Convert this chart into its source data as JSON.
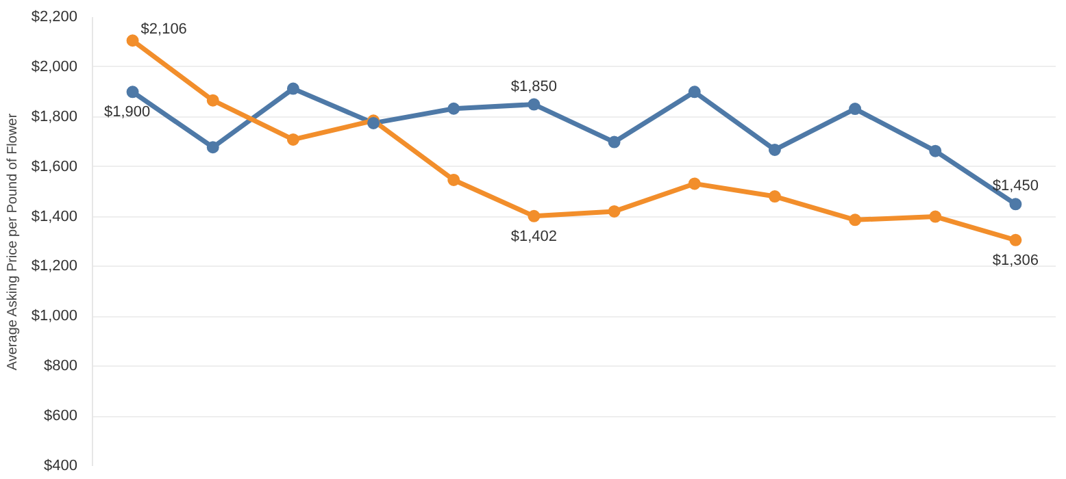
{
  "chart_data": {
    "type": "line",
    "ylabel": "Average Asking Price per Pound of Flower",
    "categories": [
      null,
      null,
      null,
      null,
      null,
      null,
      null,
      null,
      null,
      null,
      null,
      null
    ],
    "series": [
      {
        "color": "#4e79a7",
        "values": [
          1900,
          1678,
          1913,
          1775,
          1833,
          1850,
          1699,
          1900,
          1668,
          1832,
          1663,
          1450
        ],
        "value_labels": [
          "$1,900",
          null,
          null,
          null,
          null,
          "$1,850",
          null,
          null,
          null,
          null,
          null,
          "$1,450"
        ]
      },
      {
        "color": "#f28e2b",
        "values": [
          2106,
          1866,
          1709,
          1785,
          1547,
          1402,
          1421,
          1532,
          1481,
          1387,
          1400,
          1306
        ],
        "value_labels": [
          "$2,106",
          null,
          null,
          null,
          null,
          "$1,402",
          null,
          null,
          null,
          null,
          null,
          "$1,306"
        ]
      }
    ],
    "ylim": [
      400,
      2200
    ],
    "yticks": [
      {
        "value": 400,
        "label": "$400"
      },
      {
        "value": 600,
        "label": "$600"
      },
      {
        "value": 800,
        "label": "$800"
      },
      {
        "value": 1000,
        "label": "$1,000"
      },
      {
        "value": 1200,
        "label": "$1,200"
      },
      {
        "value": 1400,
        "label": "$1,400"
      },
      {
        "value": 1600,
        "label": "$1,600"
      },
      {
        "value": 1800,
        "label": "$1,800"
      },
      {
        "value": 2000,
        "label": "$2,000"
      },
      {
        "value": 2200,
        "label": "$2,200"
      }
    ],
    "grid": "y",
    "marker": "circle",
    "line_style": "solid",
    "tick_labels": "y"
  }
}
